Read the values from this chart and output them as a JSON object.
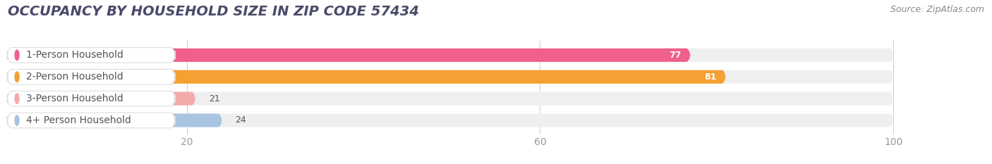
{
  "title": "OCCUPANCY BY HOUSEHOLD SIZE IN ZIP CODE 57434",
  "source": "Source: ZipAtlas.com",
  "categories": [
    "1-Person Household",
    "2-Person Household",
    "3-Person Household",
    "4+ Person Household"
  ],
  "values": [
    77,
    81,
    21,
    24
  ],
  "bar_colors": [
    "#F0608A",
    "#F5A033",
    "#F4AAAA",
    "#A8C4E0"
  ],
  "dot_colors": [
    "#F0608A",
    "#F5A033",
    "#F4AAAA",
    "#A8C4E0"
  ],
  "background_color": "#FFFFFF",
  "bar_bg_color": "#EFEFEF",
  "xmax": 100,
  "xlim_max": 108,
  "xticks": [
    20,
    60,
    100
  ],
  "title_fontsize": 14,
  "label_fontsize": 10,
  "value_fontsize": 9,
  "source_fontsize": 9,
  "title_color": "#4A4A6A",
  "label_color": "#555555",
  "tick_color": "#999999"
}
